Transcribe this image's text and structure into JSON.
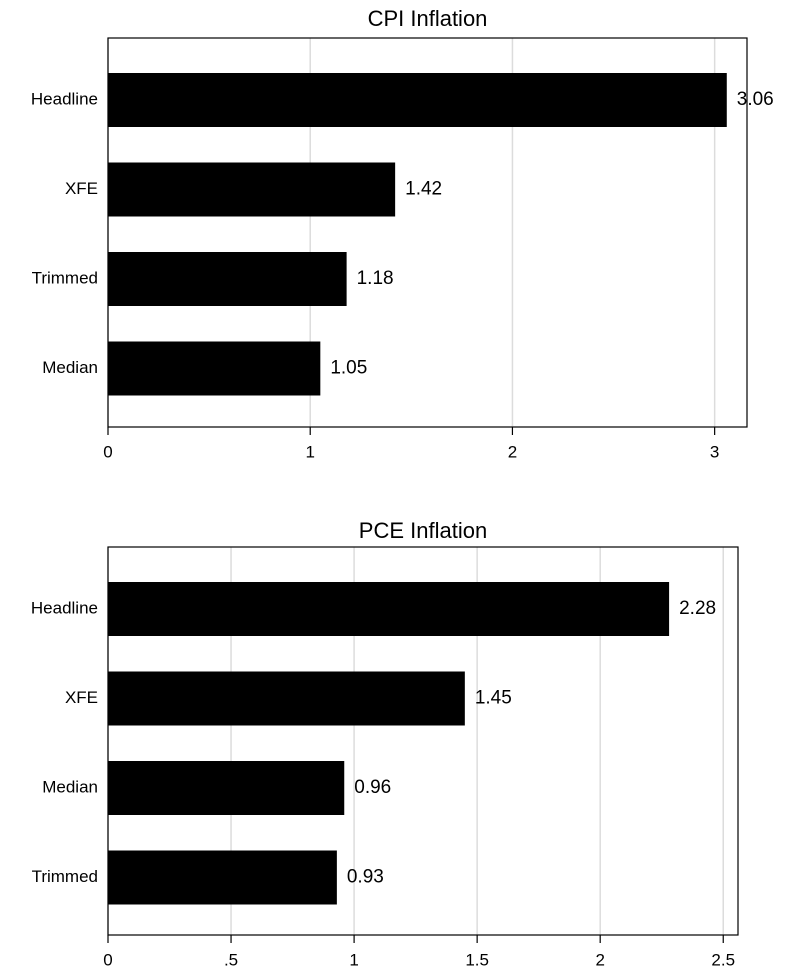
{
  "chart_data": [
    {
      "type": "bar",
      "orientation": "horizontal",
      "title": "CPI Inflation",
      "categories": [
        "Headline",
        "XFE",
        "Trimmed",
        "Median"
      ],
      "values": [
        3.06,
        1.42,
        1.18,
        1.05
      ],
      "color": "#000000",
      "xlim": [
        0,
        3.16
      ],
      "xticks": [
        0,
        1,
        2,
        3
      ],
      "grid": true
    },
    {
      "type": "bar",
      "orientation": "horizontal",
      "title": "PCE Inflation",
      "categories": [
        "Headline",
        "XFE",
        "Median",
        "Trimmed"
      ],
      "values": [
        2.28,
        1.45,
        0.96,
        0.93
      ],
      "color": "#000000",
      "xlim": [
        0,
        2.56
      ],
      "xticks": [
        0,
        {
          "value": 0.5,
          "label": ".5"
        },
        1,
        1.5,
        2,
        2.5
      ],
      "grid": true
    }
  ]
}
